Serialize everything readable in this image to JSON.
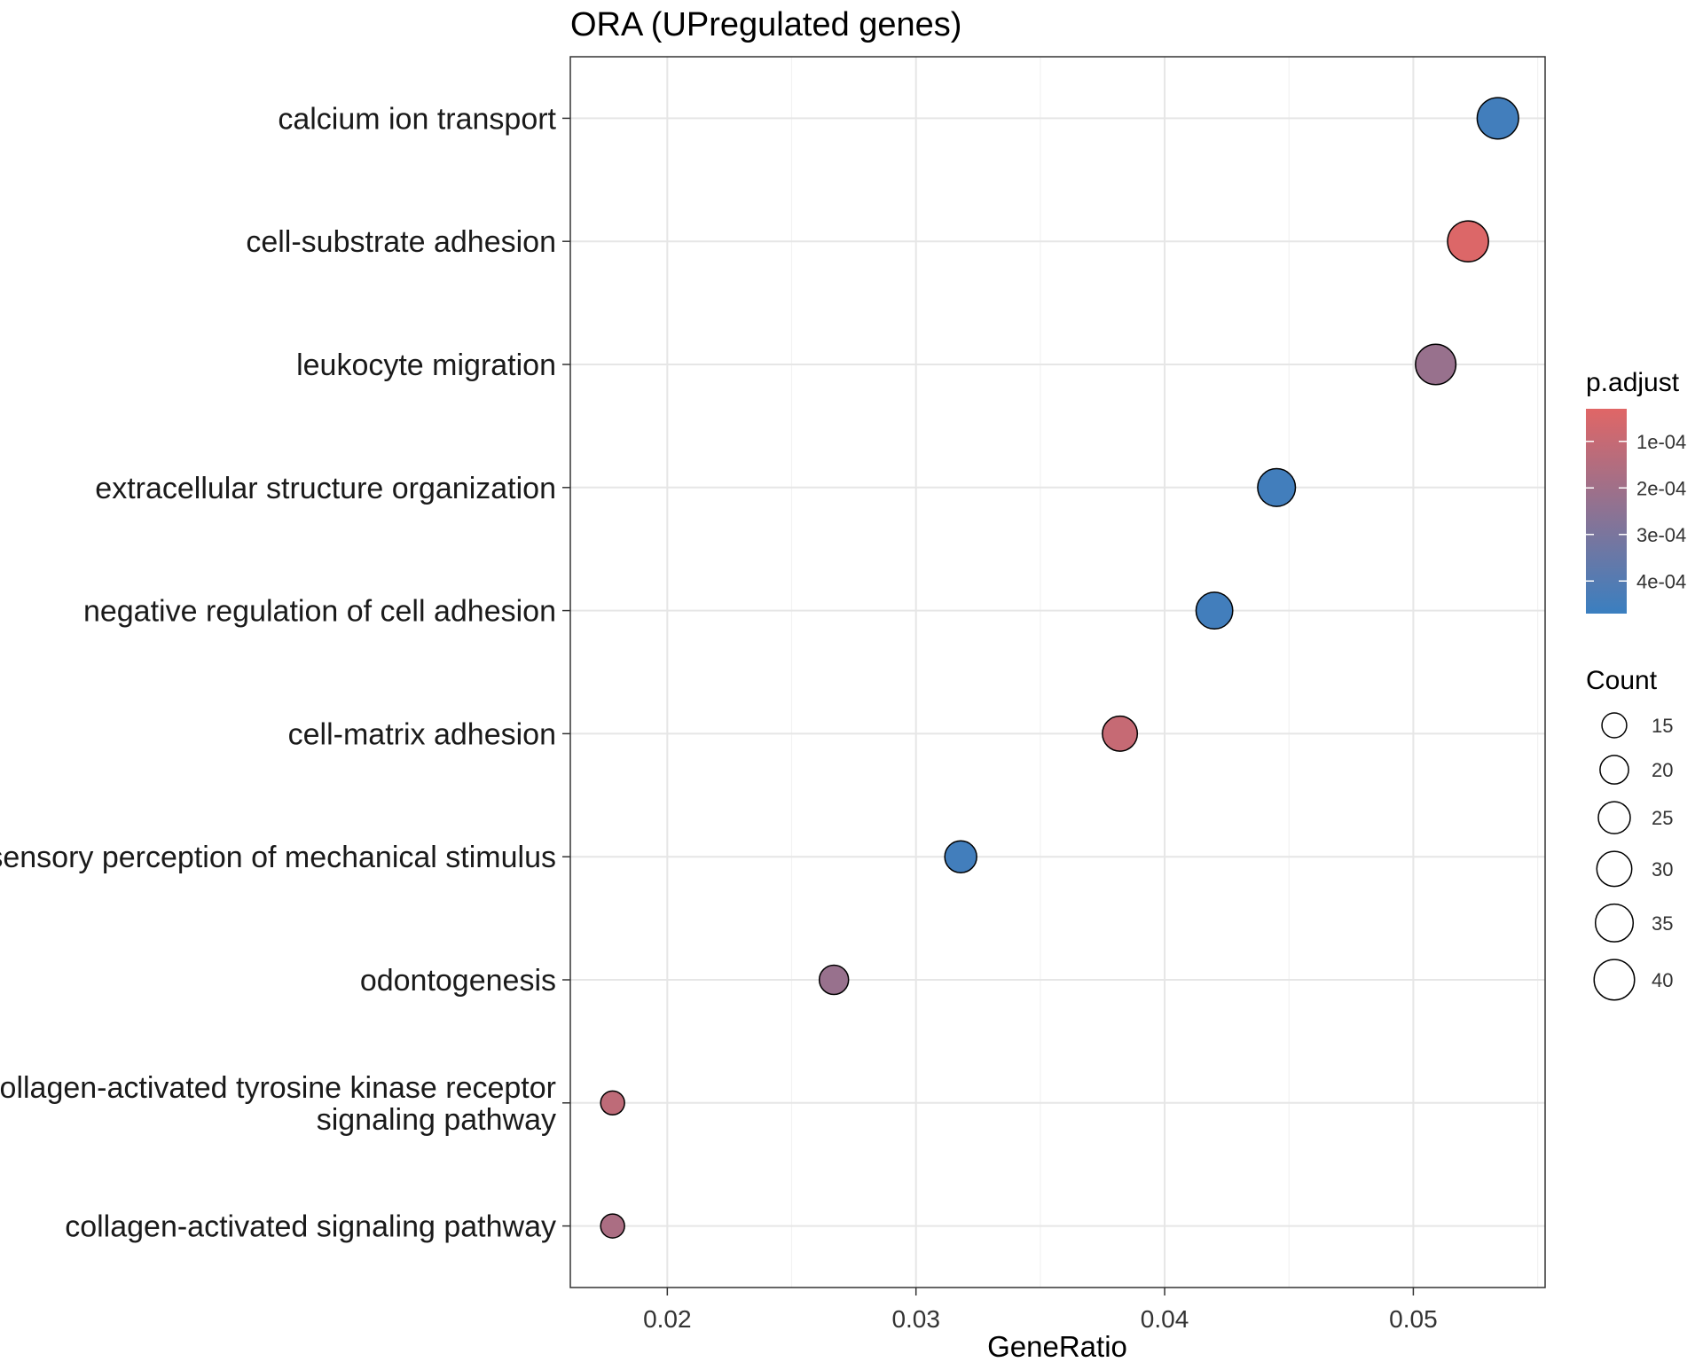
{
  "chart_data": {
    "type": "scatter",
    "title": "ORA (UPregulated genes)",
    "xlabel": "GeneRatio",
    "ylabel": "",
    "xlim": [
      0.0161,
      0.0553
    ],
    "xticks": [
      {
        "value": 0.02,
        "label": "0.02"
      },
      {
        "value": 0.03,
        "label": "0.03"
      },
      {
        "value": 0.04,
        "label": "0.04"
      },
      {
        "value": 0.05,
        "label": "0.05"
      }
    ],
    "grid": true,
    "legend_position": "right",
    "points": [
      {
        "term_lines": [
          "calcium ion transport"
        ],
        "gene_ratio": 0.0534,
        "count": 42,
        "p_adjust": 0.00045
      },
      {
        "term_lines": [
          "cell-substrate adhesion"
        ],
        "gene_ratio": 0.0522,
        "count": 41,
        "p_adjust": 4e-05
      },
      {
        "term_lines": [
          "leukocyte migration"
        ],
        "gene_ratio": 0.0509,
        "count": 40,
        "p_adjust": 0.00022
      },
      {
        "term_lines": [
          "extracellular structure organization"
        ],
        "gene_ratio": 0.0445,
        "count": 35,
        "p_adjust": 0.00045
      },
      {
        "term_lines": [
          "negative regulation of cell adhesion"
        ],
        "gene_ratio": 0.042,
        "count": 33,
        "p_adjust": 0.00045
      },
      {
        "term_lines": [
          "cell-matrix adhesion"
        ],
        "gene_ratio": 0.0382,
        "count": 30,
        "p_adjust": 0.0001
      },
      {
        "term_lines": [
          "sensory perception of mechanical stimulus"
        ],
        "gene_ratio": 0.0318,
        "count": 25,
        "p_adjust": 0.00045
      },
      {
        "term_lines": [
          "odontogenesis"
        ],
        "gene_ratio": 0.0267,
        "count": 21,
        "p_adjust": 0.00022
      },
      {
        "term_lines": [
          "collagen-activated tyrosine kinase receptor",
          "signaling pathway"
        ],
        "gene_ratio": 0.0178,
        "count": 14,
        "p_adjust": 0.00012
      },
      {
        "term_lines": [
          "collagen-activated signaling pathway"
        ],
        "gene_ratio": 0.0178,
        "count": 14,
        "p_adjust": 0.00017
      }
    ],
    "color_legend": {
      "title": "p.adjust",
      "domain": [
        3e-05,
        0.00047
      ],
      "low_color": "#e06666",
      "high_color": "#3a7fc0",
      "ticks": [
        {
          "value": 0.0001,
          "label": "1e-04"
        },
        {
          "value": 0.0002,
          "label": "2e-04"
        },
        {
          "value": 0.0003,
          "label": "3e-04"
        },
        {
          "value": 0.0004,
          "label": "4e-04"
        }
      ]
    },
    "size_legend": {
      "title": "Count",
      "entries": [
        {
          "count": 15,
          "label": "15"
        },
        {
          "count": 20,
          "label": "20"
        },
        {
          "count": 25,
          "label": "25"
        },
        {
          "count": 30,
          "label": "30"
        },
        {
          "count": 35,
          "label": "35"
        },
        {
          "count": 40,
          "label": "40"
        }
      ]
    }
  }
}
